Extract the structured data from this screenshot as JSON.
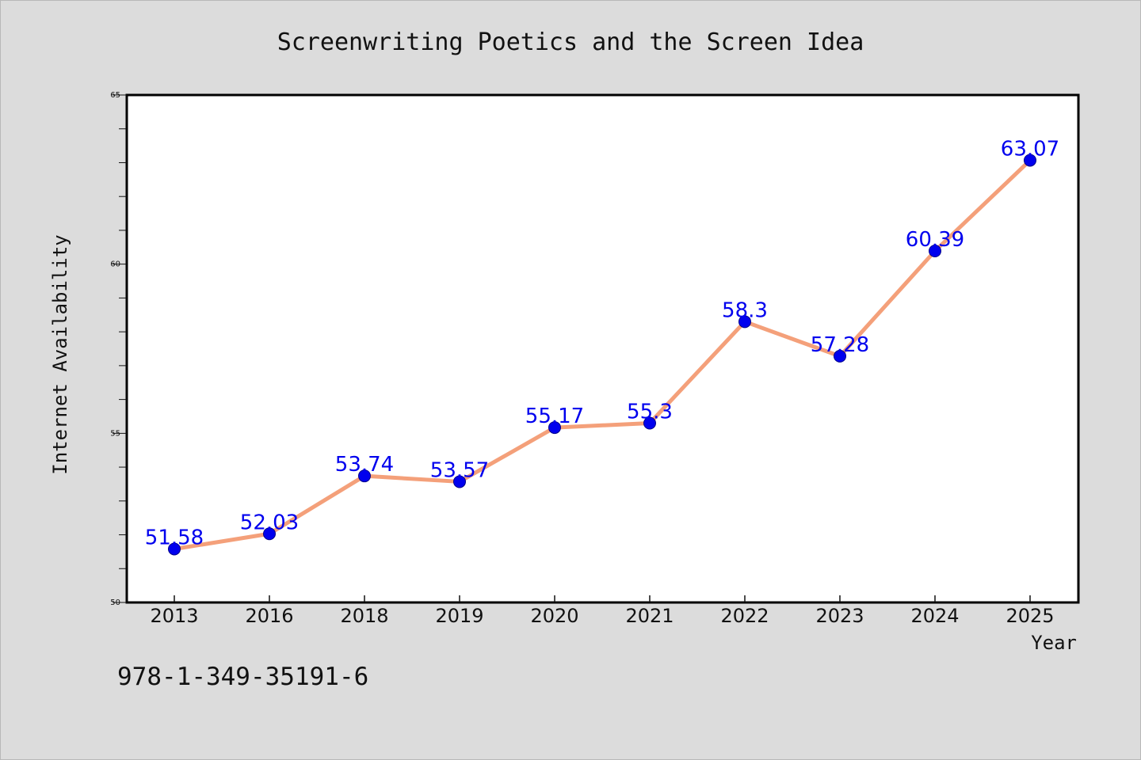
{
  "chart_data": {
    "type": "line",
    "title": "Screenwriting Poetics and the Screen Idea",
    "xlabel": "Year",
    "ylabel": "Internet Availability",
    "categories": [
      "2013",
      "2016",
      "2018",
      "2019",
      "2020",
      "2021",
      "2022",
      "2023",
      "2024",
      "2025"
    ],
    "series": [
      {
        "values": [
          51.58,
          52.03,
          53.74,
          53.57,
          55.17,
          55.3,
          58.3,
          57.28,
          60.39,
          63.07
        ],
        "line_color": "#f4a07a",
        "marker_color": "#0000ee"
      }
    ],
    "data_labels": [
      "51.58",
      "52.03",
      "53.74",
      "53.57",
      "55.17",
      "55.3",
      "58.3",
      "57.28",
      "60.39",
      "63.07"
    ],
    "ylim": [
      50,
      65
    ],
    "yticks": [
      50,
      55,
      60,
      65
    ],
    "ytick_labels": [
      "50",
      "55",
      "60",
      "65"
    ],
    "grid": false,
    "legend": "none",
    "plot_background": "#ffffff",
    "figure_background": "#dcdcdc"
  },
  "footer": {
    "isbn": "978-1-349-35191-6"
  }
}
